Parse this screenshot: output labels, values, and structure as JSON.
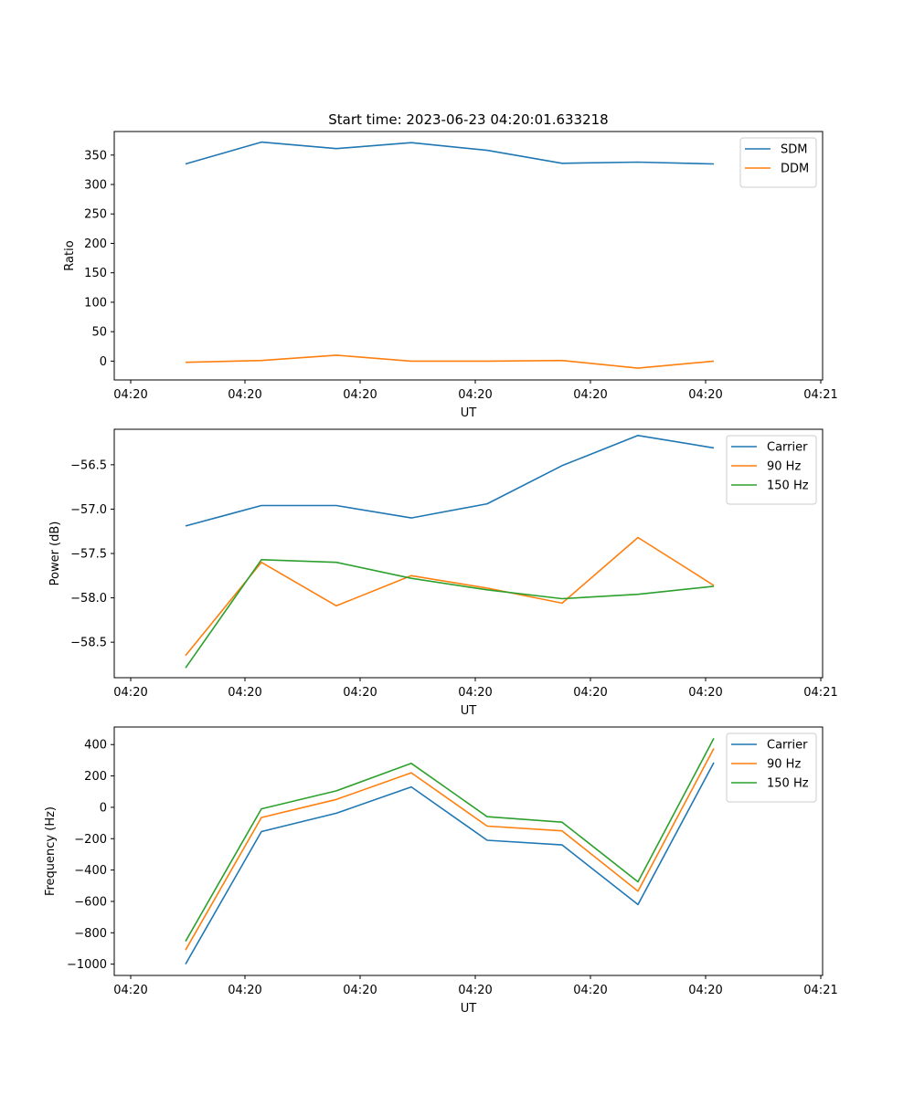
{
  "figure": {
    "title": "Start time: 2023-06-23 04:20:01.633218"
  },
  "colors": {
    "c0": "#1f77b4",
    "c1": "#ff7f0e",
    "c2": "#2ca02c"
  },
  "chart_data": [
    {
      "type": "line",
      "ylabel": "Ratio",
      "xlabel": "UT",
      "xticks": [
        "04:20",
        "04:20",
        "04:20",
        "04:20",
        "04:20",
        "04:20",
        "04:21"
      ],
      "ylim": [
        -32,
        390
      ],
      "yticks": [
        0,
        50,
        100,
        150,
        200,
        250,
        300,
        350
      ],
      "legend": "top-right",
      "series": [
        {
          "name": "SDM",
          "color": "#1f77b4",
          "values": [
            335,
            372,
            361,
            371,
            358,
            336,
            338,
            335
          ]
        },
        {
          "name": "DDM",
          "color": "#ff7f0e",
          "values": [
            -2,
            1,
            10,
            0,
            0,
            1,
            -12,
            0
          ]
        }
      ]
    },
    {
      "type": "line",
      "ylabel": "Power (dB)",
      "xlabel": "UT",
      "xticks": [
        "04:20",
        "04:20",
        "04:20",
        "04:20",
        "04:20",
        "04:20",
        "04:21"
      ],
      "ylim": [
        -58.9,
        -56.1
      ],
      "yticks": [
        -58.5,
        -58.0,
        -57.5,
        -57.0,
        -56.5
      ],
      "ytick_labels": [
        "−58.5",
        "−58.0",
        "−57.5",
        "−57.0",
        "−56.5"
      ],
      "legend": "top-right",
      "series": [
        {
          "name": "Carrier",
          "color": "#1f77b4",
          "values": [
            -57.19,
            -56.96,
            -56.96,
            -57.1,
            -56.94,
            -56.51,
            -56.17,
            -56.31
          ]
        },
        {
          "name": "90 Hz",
          "color": "#ff7f0e",
          "values": [
            -58.65,
            -57.6,
            -58.09,
            -57.75,
            -57.89,
            -58.06,
            -57.32,
            -57.86
          ]
        },
        {
          "name": "150 Hz",
          "color": "#2ca02c",
          "values": [
            -58.79,
            -57.57,
            -57.6,
            -57.78,
            -57.91,
            -58.01,
            -57.96,
            -57.87
          ]
        }
      ]
    },
    {
      "type": "line",
      "ylabel": "Frequency (Hz)",
      "xlabel": "UT",
      "xticks": [
        "04:20",
        "04:20",
        "04:20",
        "04:20",
        "04:20",
        "04:20",
        "04:21"
      ],
      "ylim": [
        -1072,
        512
      ],
      "yticks": [
        -1000,
        -800,
        -600,
        -400,
        -200,
        0,
        200,
        400
      ],
      "ytick_labels": [
        "−1000",
        "−800",
        "−600",
        "−400",
        "−200",
        "0",
        "200",
        "400"
      ],
      "legend": "top-right",
      "series": [
        {
          "name": "Carrier",
          "color": "#1f77b4",
          "values": [
            -1000,
            -155,
            -38,
            130,
            -210,
            -240,
            -620,
            285
          ]
        },
        {
          "name": "90 Hz",
          "color": "#ff7f0e",
          "values": [
            -910,
            -65,
            50,
            220,
            -120,
            -150,
            -535,
            375
          ]
        },
        {
          "name": "150 Hz",
          "color": "#2ca02c",
          "values": [
            -855,
            -10,
            105,
            280,
            -60,
            -95,
            -475,
            440
          ]
        }
      ]
    }
  ]
}
